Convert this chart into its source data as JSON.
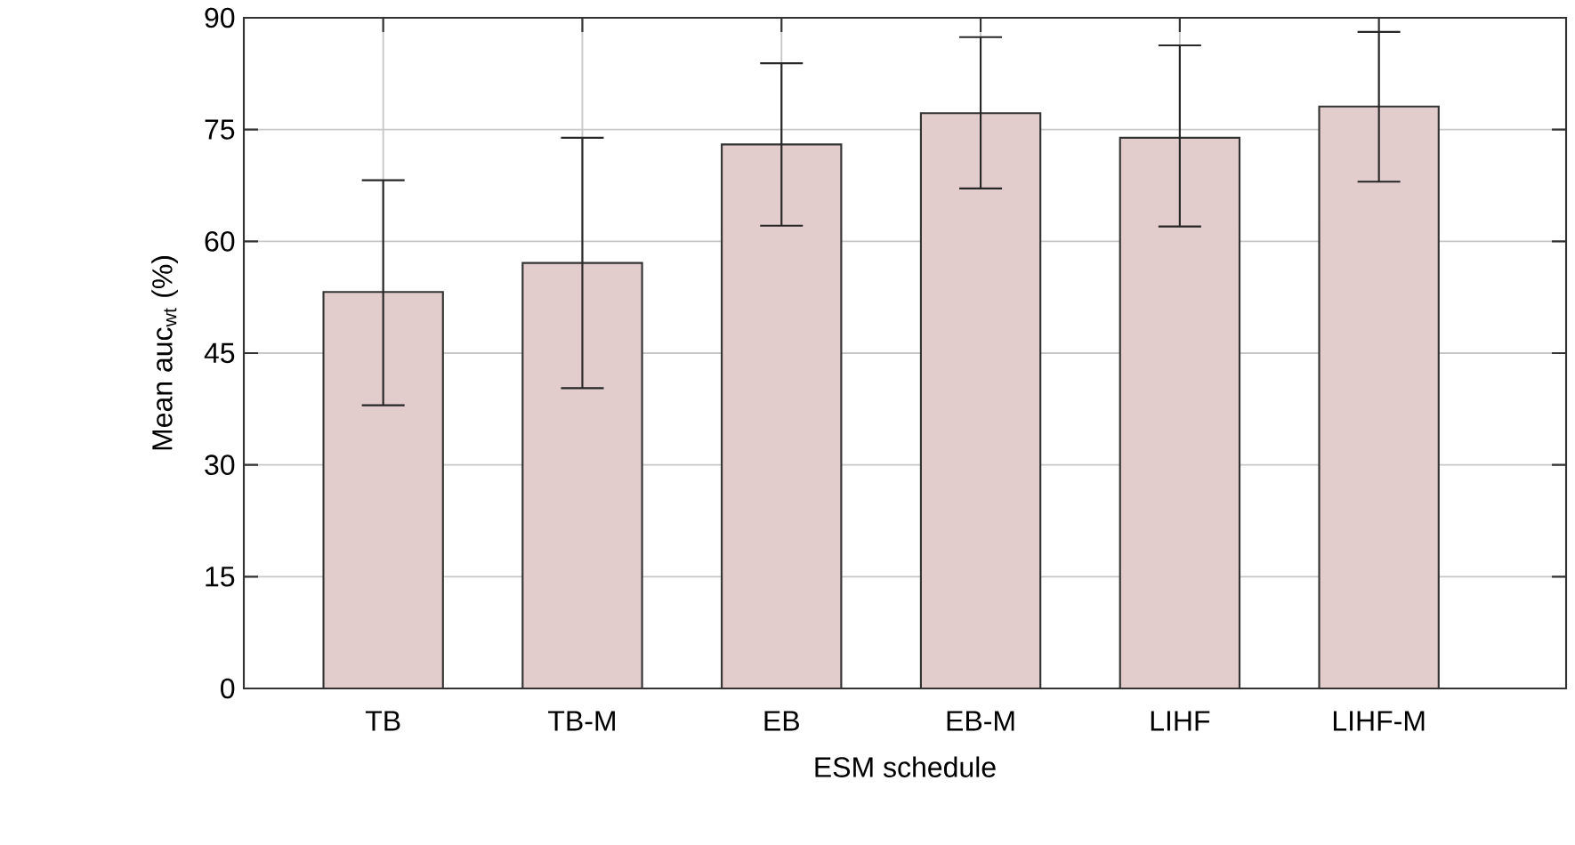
{
  "chart_data": {
    "type": "bar",
    "xlabel": "ESM schedule",
    "ylabel": "Mean auc$_{wt}$ (%)",
    "categories": [
      "TB",
      "TB-M",
      "EB",
      "EB-M",
      "LIHF",
      "LIHF-M"
    ],
    "values": [
      53.2,
      57.1,
      73.0,
      77.2,
      73.9,
      78.1
    ],
    "errors": [
      [
        38.0,
        68.2
      ],
      [
        40.3,
        73.9
      ],
      [
        62.1,
        83.9
      ],
      [
        67.1,
        87.4
      ],
      [
        62.0,
        86.3
      ],
      [
        68.0,
        88.1
      ]
    ],
    "color": "#e2cccc",
    "ylim": [
      0,
      90
    ],
    "yticks": [
      0,
      15,
      30,
      45,
      60,
      75,
      90
    ],
    "grid": true
  }
}
